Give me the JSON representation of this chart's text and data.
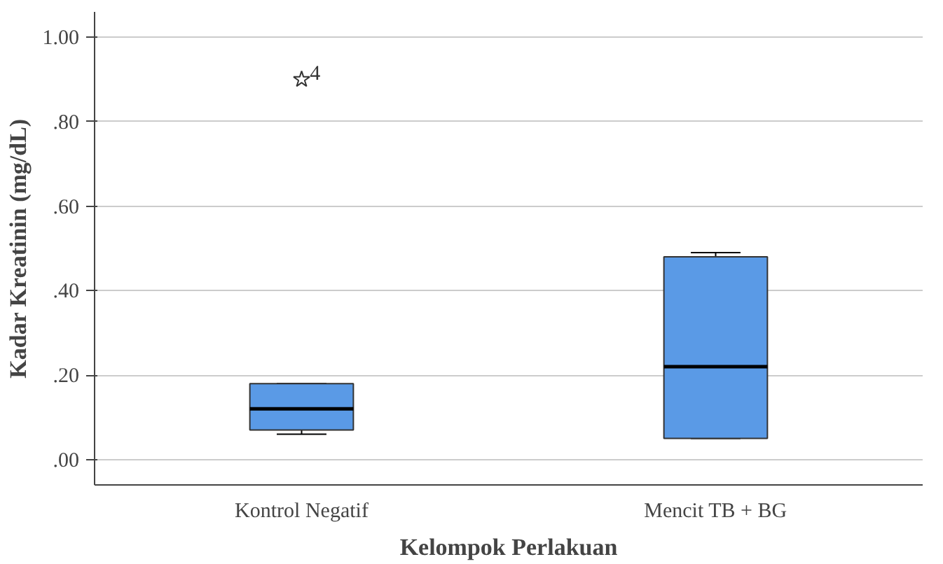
{
  "chart_data": {
    "type": "box",
    "xlabel": "Kelompok Perlakuan",
    "ylabel": "Kadar Kreatinin (mg/dL)",
    "categories": [
      "Kontrol Negatif",
      "Mencit TB + BG"
    ],
    "boxes": [
      {
        "low": 0.06,
        "q1": 0.07,
        "median": 0.12,
        "q3": 0.18,
        "high": 0.18,
        "outliers": [
          0.9
        ]
      },
      {
        "low": 0.05,
        "q1": 0.05,
        "median": 0.22,
        "q3": 0.48,
        "high": 0.49
      }
    ],
    "color": "#5a9ae6",
    "marker": "star",
    "annotations": [
      "4"
    ],
    "ylim": [
      -0.06,
      1.06
    ],
    "yticks": [
      {
        "value": 0,
        "label": ".00"
      },
      {
        "value": 0.2,
        "label": ".20"
      },
      {
        "value": 0.4,
        "label": ".40"
      },
      {
        "value": 0.6,
        "label": ".60"
      },
      {
        "value": 0.8,
        "label": ".80"
      },
      {
        "value": 1,
        "label": "1.00"
      }
    ],
    "grid": "y"
  }
}
